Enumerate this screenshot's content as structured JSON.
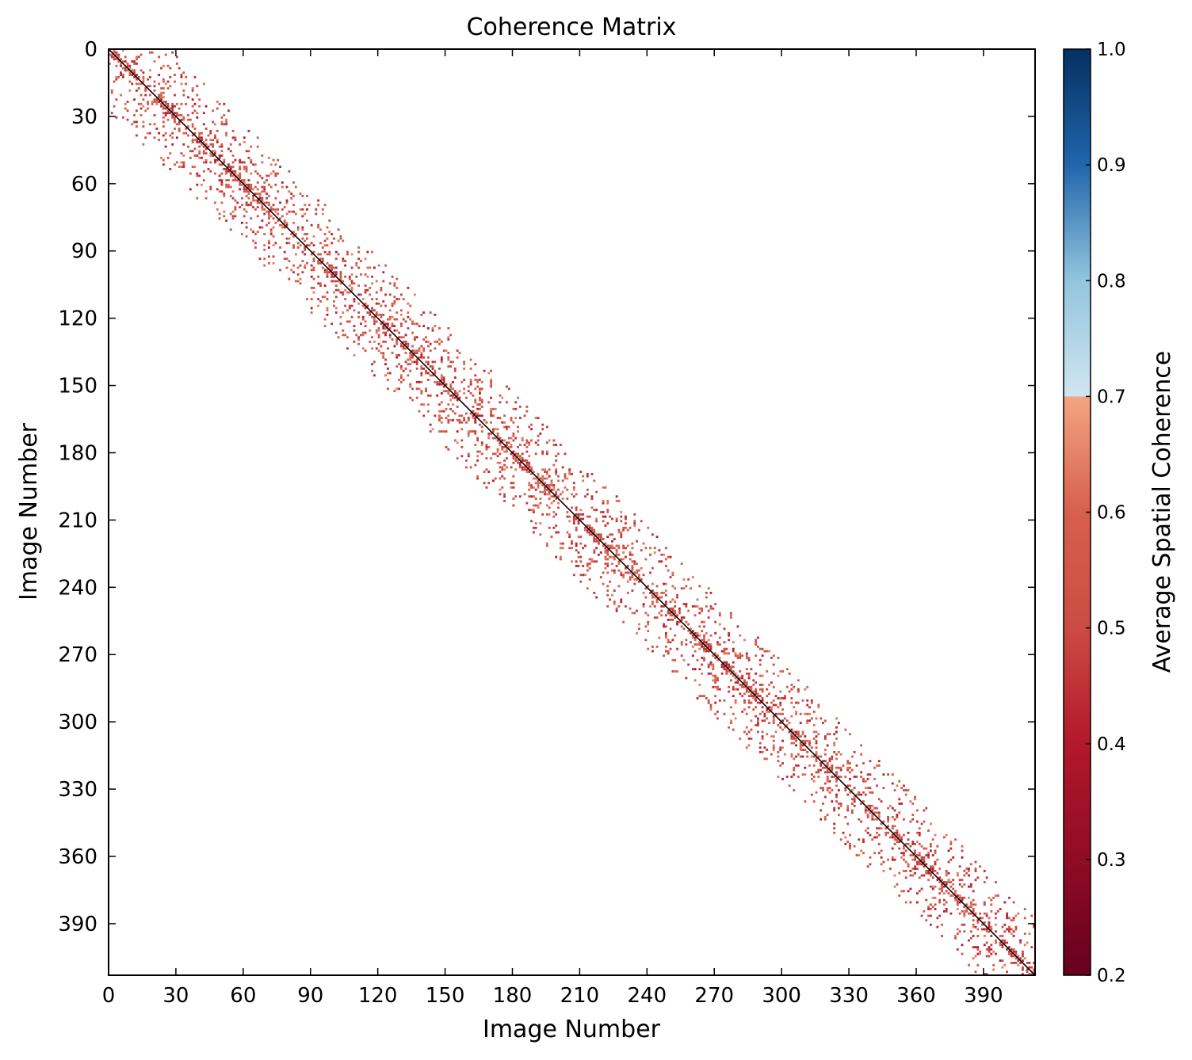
{
  "chart_data": {
    "type": "heatmap",
    "title": "Coherence Matrix",
    "xlabel": "Image Number",
    "ylabel": "Image Number",
    "n_images": 413,
    "xlim": [
      0,
      413
    ],
    "ylim": [
      413,
      0
    ],
    "x_ticks": [
      0,
      30,
      60,
      90,
      120,
      150,
      180,
      210,
      240,
      270,
      300,
      330,
      360,
      390
    ],
    "y_ticks": [
      0,
      30,
      60,
      90,
      120,
      150,
      180,
      210,
      240,
      270,
      300,
      330,
      360,
      390
    ],
    "tick_labels": [
      "0",
      "30",
      "60",
      "90",
      "120",
      "150",
      "180",
      "210",
      "240",
      "270",
      "300",
      "330",
      "360",
      "390"
    ],
    "diagonal_value": 1.0,
    "band_half_width_approx": 28,
    "typical_offdiagonal_value_range": [
      0.4,
      0.65
    ],
    "colorbar": {
      "label": "Average Spatial Coherence",
      "colormap": "RdBu",
      "range": [
        0.2,
        1.0
      ],
      "ticks": [
        0.2,
        0.3,
        0.4,
        0.5,
        0.6,
        0.7,
        0.8,
        0.9,
        1.0
      ],
      "tick_labels": [
        "0.2",
        "0.3",
        "0.4",
        "0.5",
        "0.6",
        "0.7",
        "0.8",
        "0.9",
        "1.0"
      ],
      "stops": [
        {
          "value": 0.2,
          "color": "#67001f"
        },
        {
          "value": 0.3,
          "color": "#8f0c25"
        },
        {
          "value": 0.4,
          "color": "#b2182b"
        },
        {
          "value": 0.5,
          "color": "#cc4c43"
        },
        {
          "value": 0.6,
          "color": "#d6604d"
        },
        {
          "value": 0.7,
          "color": "#f4a582"
        },
        {
          "value": 0.7001,
          "color": "#d1e5f0"
        },
        {
          "value": 0.8,
          "color": "#92c5de"
        },
        {
          "value": 0.9,
          "color": "#2166ac"
        },
        {
          "value": 1.0,
          "color": "#053061"
        }
      ]
    },
    "diagonal_color": "#000000"
  }
}
